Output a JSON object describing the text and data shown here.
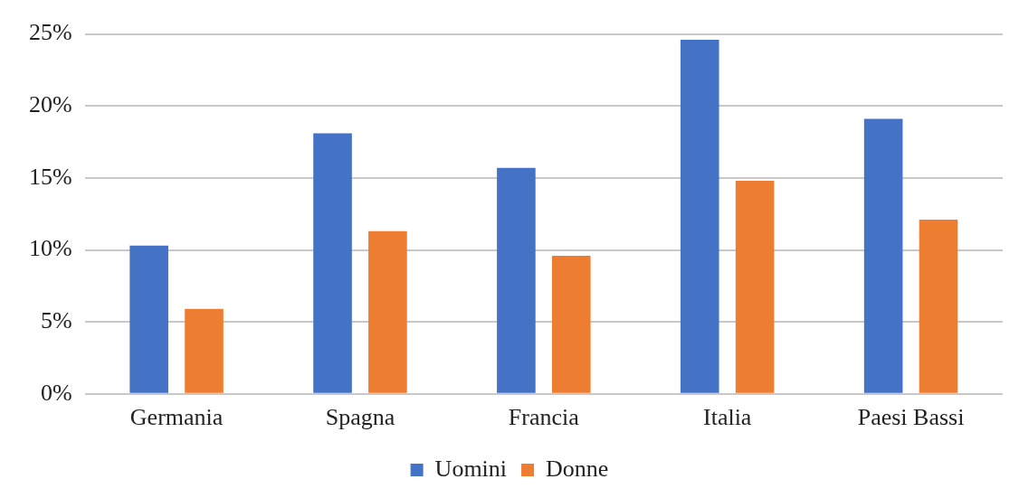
{
  "chart_data": {
    "type": "bar",
    "categories": [
      "Germania",
      "Spagna",
      "Francia",
      "Italia",
      "Paesi Bassi"
    ],
    "series": [
      {
        "name": "Uomini",
        "color": "#4472c4",
        "values": [
          10.3,
          18.1,
          15.7,
          24.6,
          19.1
        ]
      },
      {
        "name": "Donne",
        "color": "#ed7d31",
        "values": [
          5.9,
          11.3,
          9.6,
          14.8,
          12.1
        ]
      }
    ],
    "ylim": [
      0,
      25
    ],
    "yticks": [
      {
        "value": 0,
        "label": "0%"
      },
      {
        "value": 5,
        "label": "5%"
      },
      {
        "value": 10,
        "label": "10%"
      },
      {
        "value": 15,
        "label": "15%"
      },
      {
        "value": 20,
        "label": "20%"
      },
      {
        "value": 25,
        "label": "25%"
      }
    ],
    "grid": "y",
    "legend": "bottom"
  }
}
